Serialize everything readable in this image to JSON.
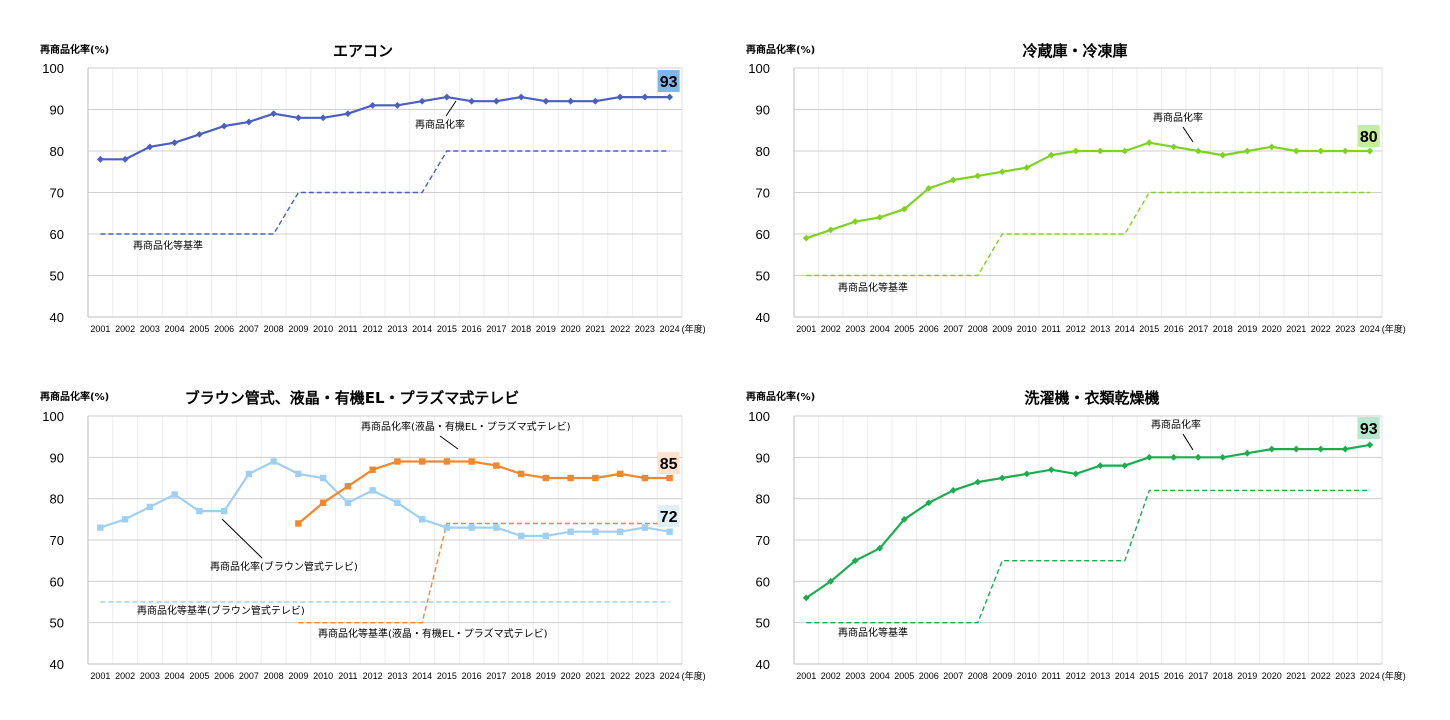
{
  "chart_data": [
    {
      "type": "line",
      "title": "エアコン",
      "ylabel": "再商品化率(%)",
      "x_suffix": "(年度)",
      "ylim": [
        40,
        100
      ],
      "yticks": [
        40,
        50,
        60,
        70,
        80,
        90,
        100
      ],
      "x": [
        2001,
        2002,
        2003,
        2004,
        2005,
        2006,
        2007,
        2008,
        2009,
        2010,
        2011,
        2012,
        2013,
        2014,
        2015,
        2016,
        2017,
        2018,
        2019,
        2020,
        2021,
        2022,
        2023,
        2024
      ],
      "series": [
        {
          "name": "再商品化率",
          "style": "solid",
          "marker": "diamond",
          "color": "#4a5fc1",
          "values": [
            78,
            78,
            81,
            82,
            84,
            86,
            87,
            89,
            88,
            88,
            89,
            91,
            91,
            92,
            93,
            92,
            92,
            93,
            92,
            92,
            92,
            93,
            93,
            93
          ]
        },
        {
          "name": "再商品化等基準",
          "style": "dashed",
          "color": "#4a5fc1",
          "values": [
            60,
            60,
            60,
            60,
            60,
            60,
            60,
            60,
            70,
            70,
            70,
            70,
            70,
            70,
            80,
            80,
            80,
            80,
            80,
            80,
            80,
            80,
            80,
            80
          ]
        }
      ],
      "end_label": {
        "text": "93",
        "bg": "#7fb7ea"
      }
    },
    {
      "type": "line",
      "title": "冷蔵庫・冷凍庫",
      "ylabel": "再商品化率(%)",
      "x_suffix": "(年度)",
      "ylim": [
        40,
        100
      ],
      "yticks": [
        40,
        50,
        60,
        70,
        80,
        90,
        100
      ],
      "x": [
        2001,
        2002,
        2003,
        2004,
        2005,
        2006,
        2007,
        2008,
        2009,
        2010,
        2011,
        2012,
        2013,
        2014,
        2015,
        2016,
        2017,
        2018,
        2019,
        2020,
        2021,
        2022,
        2023,
        2024
      ],
      "series": [
        {
          "name": "再商品化率",
          "style": "solid",
          "marker": "diamond",
          "color": "#7ed321",
          "values": [
            59,
            61,
            63,
            64,
            66,
            71,
            73,
            74,
            75,
            76,
            79,
            80,
            80,
            80,
            82,
            81,
            80,
            79,
            80,
            81,
            80,
            80,
            80,
            80
          ]
        },
        {
          "name": "再商品化等基準",
          "style": "dashed",
          "color": "#7ed321",
          "values": [
            50,
            50,
            50,
            50,
            50,
            50,
            50,
            50,
            60,
            60,
            60,
            60,
            60,
            60,
            70,
            70,
            70,
            70,
            70,
            70,
            70,
            70,
            70,
            70
          ]
        }
      ],
      "end_label": {
        "text": "80",
        "bg": "#c5ee9a"
      }
    },
    {
      "type": "line",
      "title": "ブラウン管式、液晶・有機EL・プラズマ式テレビ",
      "ylabel": "再商品化率(%)",
      "x_suffix": "(年度)",
      "ylim": [
        40,
        100
      ],
      "yticks": [
        40,
        50,
        60,
        70,
        80,
        90,
        100
      ],
      "x": [
        2001,
        2002,
        2003,
        2004,
        2005,
        2006,
        2007,
        2008,
        2009,
        2010,
        2011,
        2012,
        2013,
        2014,
        2015,
        2016,
        2017,
        2018,
        2019,
        2020,
        2021,
        2022,
        2023,
        2024
      ],
      "series": [
        {
          "name": "再商品化率(ブラウン管式テレビ)",
          "style": "solid",
          "marker": "square",
          "color": "#9fd0f2",
          "values": [
            73,
            75,
            78,
            81,
            77,
            77,
            86,
            89,
            86,
            85,
            79,
            82,
            79,
            75,
            73,
            73,
            73,
            71,
            71,
            72,
            72,
            72,
            73,
            72
          ]
        },
        {
          "name": "再商品化率(液晶・有機EL・プラズマ式テレビ)",
          "style": "solid",
          "marker": "square",
          "color": "#f4862b",
          "values": [
            null,
            null,
            null,
            null,
            null,
            null,
            null,
            null,
            74,
            79,
            83,
            87,
            89,
            89,
            89,
            89,
            88,
            86,
            85,
            85,
            85,
            86,
            85,
            85
          ]
        },
        {
          "name": "再商品化等基準(ブラウン管式テレビ)",
          "style": "dashed",
          "color": "#9fd0f2",
          "values": [
            55,
            55,
            55,
            55,
            55,
            55,
            55,
            55,
            55,
            55,
            55,
            55,
            55,
            55,
            55,
            55,
            55,
            55,
            55,
            55,
            55,
            55,
            55,
            55
          ]
        },
        {
          "name": "再商品化等基準(液晶・有機EL・プラズマ式テレビ)",
          "style": "dashed",
          "color": "#f4862b",
          "values": [
            null,
            null,
            null,
            null,
            null,
            null,
            null,
            null,
            50,
            50,
            50,
            50,
            50,
            50,
            74,
            74,
            74,
            74,
            74,
            74,
            74,
            74,
            74,
            74
          ]
        }
      ],
      "end_labels": [
        {
          "text": "85",
          "bg": "#fde3d0"
        },
        {
          "text": "72",
          "bg": "#dff0fc"
        }
      ]
    },
    {
      "type": "line",
      "title": "洗濯機・衣類乾燥機",
      "ylabel": "再商品化率(%)",
      "x_suffix": "(年度)",
      "ylim": [
        40,
        100
      ],
      "yticks": [
        40,
        50,
        60,
        70,
        80,
        90,
        100
      ],
      "x": [
        2001,
        2002,
        2003,
        2004,
        2005,
        2006,
        2007,
        2008,
        2009,
        2010,
        2011,
        2012,
        2013,
        2014,
        2015,
        2016,
        2017,
        2018,
        2019,
        2020,
        2021,
        2022,
        2023,
        2024
      ],
      "series": [
        {
          "name": "再商品化率",
          "style": "solid",
          "marker": "diamond",
          "color": "#1aad4f",
          "values": [
            56,
            60,
            65,
            68,
            75,
            79,
            82,
            84,
            85,
            86,
            87,
            86,
            88,
            88,
            90,
            90,
            90,
            90,
            91,
            92,
            92,
            92,
            92,
            93
          ]
        },
        {
          "name": "再商品化等基準",
          "style": "dashed",
          "color": "#1aad4f",
          "values": [
            50,
            50,
            50,
            50,
            50,
            50,
            50,
            50,
            65,
            65,
            65,
            65,
            65,
            65,
            82,
            82,
            82,
            82,
            82,
            82,
            82,
            82,
            82,
            82
          ]
        }
      ],
      "end_label": {
        "text": "93",
        "bg": "#b5e8cf"
      }
    }
  ]
}
